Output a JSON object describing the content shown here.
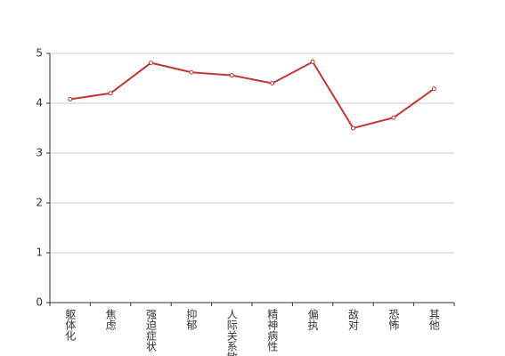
{
  "chart_data": {
    "type": "line",
    "categories": [
      "躯体化",
      "焦虑",
      "强迫症状",
      "抑郁",
      "人际关系敏感",
      "精神病性",
      "偏执",
      "敌对",
      "恐怖",
      "其他"
    ],
    "series": [
      {
        "color": "#c23531",
        "values": [
          4.08,
          4.2,
          4.81,
          4.62,
          4.56,
          4.4,
          4.83,
          3.5,
          3.71,
          4.29
        ]
      }
    ],
    "ylim": [
      0,
      5
    ],
    "yticks": [
      0,
      1,
      2,
      3,
      4,
      5
    ],
    "grid": true
  }
}
